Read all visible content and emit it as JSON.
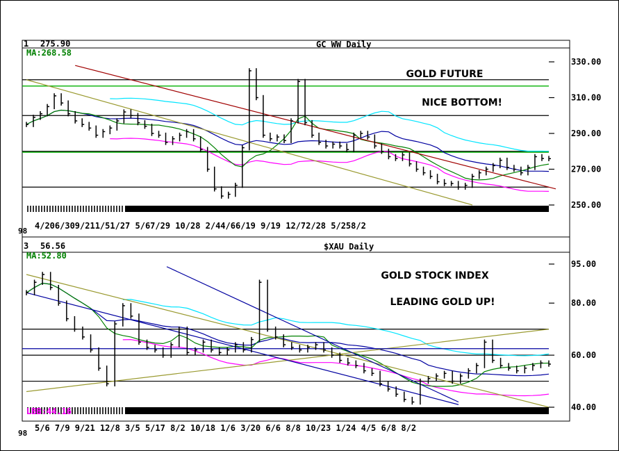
{
  "colors": {
    "ma": "#008000",
    "cyan": "#00e5ff",
    "magenta": "#ff00ff",
    "blue": "#0000a0",
    "dark_red": "#a00000",
    "olive": "#9a9a30",
    "green_line": "#00b000",
    "price": "#000000"
  },
  "chart_data": [
    {
      "type": "line",
      "panel_number": "1",
      "last_value": "275.90",
      "title": "GC WW Daily",
      "indicator_label": "MA:268.58",
      "annotations": [
        "GOLD FUTURE",
        "NICE BOTTOM!"
      ],
      "y_ticks": [
        "330.00",
        "310.00",
        "290.00",
        "270.00",
        "250.00"
      ],
      "ylim": [
        250,
        330
      ],
      "x_tick_labels": "4/206/309/211/51/27  5/67/29 10/28  2/44/66/19 9/19  12/72/28  5/258/2",
      "x_prefix": "98",
      "horizontal_levels": [
        320,
        300,
        280,
        260
      ],
      "green_levels": [
        316.5,
        279.5
      ],
      "series": [
        {
          "values": [
            295,
            299,
            301,
            305,
            311,
            307,
            301,
            297,
            295,
            293,
            289,
            291,
            293,
            297,
            302,
            300,
            296,
            294,
            290,
            289,
            285,
            287,
            289,
            291,
            287,
            281,
            270,
            259,
            255,
            256,
            261,
            282,
            325,
            310,
            289,
            287,
            288,
            286,
            297,
            319,
            296,
            289,
            285,
            283,
            284,
            283,
            281,
            289,
            290,
            288,
            283,
            280,
            277,
            276,
            278,
            273,
            270,
            268,
            266,
            263,
            262,
            262,
            260,
            261,
            266,
            268,
            270,
            272,
            275,
            271,
            270,
            268,
            271,
            277,
            276,
            275.9
          ]
        }
      ]
    },
    {
      "type": "line",
      "panel_number": "3",
      "last_value": "56.56",
      "title": "$XAU Daily",
      "indicator_label": "MA:52.80",
      "bottom_label": "LBB:44.16",
      "annotations": [
        "GOLD STOCK INDEX",
        "LEADING GOLD UP!"
      ],
      "y_ticks": [
        "95.00",
        "80.00",
        "60.00",
        "40.00"
      ],
      "ylim": [
        40,
        95
      ],
      "x_tick_labels": "5/6 7/9 9/21 12/8  3/5 5/17  8/2 10/18 1/6 3/20  6/6  8/8 10/23 1/24 4/5  6/8  8/2",
      "x_prefix": "98",
      "horizontal_levels": [
        70,
        60,
        50
      ],
      "series": [
        {
          "values": [
            84,
            88,
            91,
            86,
            80,
            74,
            70,
            67,
            62,
            55,
            49,
            72,
            79,
            75,
            65,
            63,
            62,
            60,
            64,
            70,
            61,
            62,
            65,
            62,
            61,
            62,
            64,
            62,
            66,
            88,
            70,
            67,
            64,
            63,
            62,
            63,
            64,
            62,
            60,
            58,
            57,
            56,
            54,
            53,
            49,
            47,
            45,
            43,
            42,
            50,
            51,
            52,
            53,
            50,
            52,
            54,
            56,
            65,
            58,
            56,
            55,
            54,
            55,
            56,
            57,
            56.56
          ]
        }
      ]
    }
  ]
}
